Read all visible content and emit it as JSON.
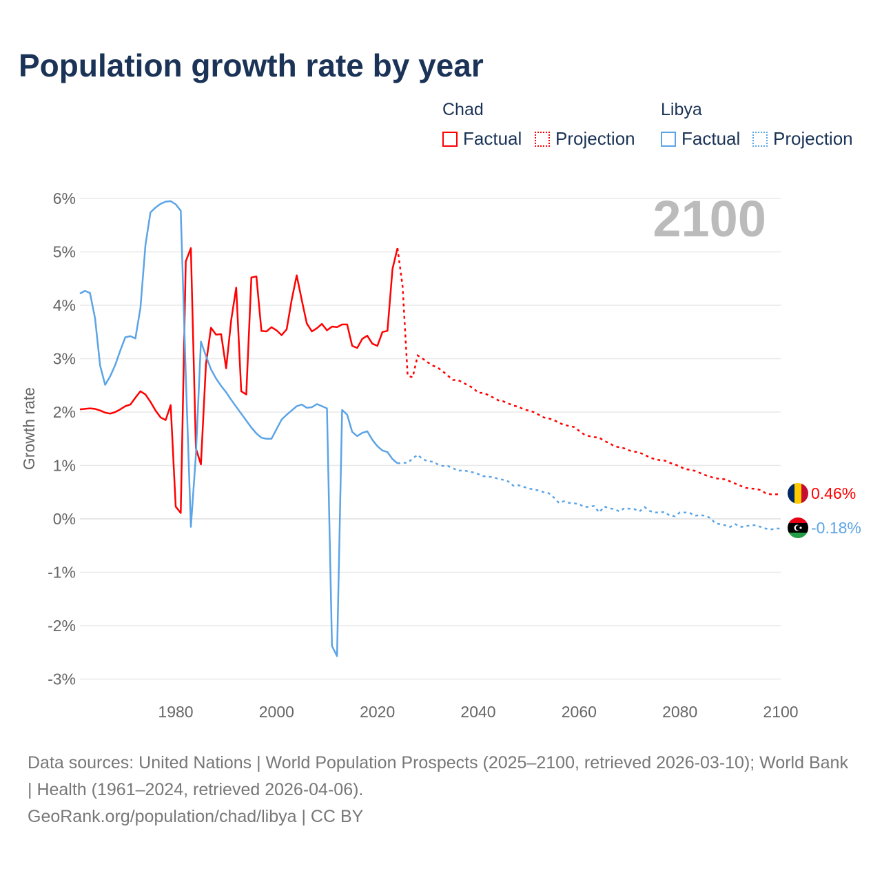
{
  "title": "Population growth rate by year",
  "legend": {
    "groups": [
      {
        "country": "Chad",
        "factual": "Factual",
        "projection": "Projection",
        "color": "#ff0000"
      },
      {
        "country": "Libya",
        "factual": "Factual",
        "projection": "Projection",
        "color": "#5ba4e6"
      }
    ]
  },
  "footer": {
    "sources": "Data sources: United Nations | World Population Prospects (2025–2100, retrieved 2026-03-10); World Bank | Health (1961–2024, retrieved 2026-04-06).",
    "credit": "GeoRank.org/population/chad/libya | CC BY"
  },
  "chart_data": {
    "type": "line",
    "title": "Population growth rate by year",
    "ylabel": "Growth rate",
    "xlabel": "",
    "year_label": "2100",
    "xlim": [
      1961,
      2100
    ],
    "ylim": [
      -3.4,
      6.2
    ],
    "xticks": [
      1980,
      2000,
      2020,
      2040,
      2060,
      2080,
      2100
    ],
    "yticks": [
      -3,
      -2,
      -1,
      0,
      1,
      2,
      3,
      4,
      5,
      6
    ],
    "ytick_labels": [
      "-3%",
      "-2%",
      "-1%",
      "0%",
      "1%",
      "2%",
      "3%",
      "4%",
      "5%",
      "6%"
    ],
    "grid": true,
    "series": [
      {
        "name": "Chad",
        "color": "#ff0000",
        "end_label": "0.46%",
        "flag": "chad-flag",
        "factual": {
          "start": 1961,
          "values": [
            2.05,
            2.06,
            2.07,
            2.06,
            2.03,
            1.99,
            1.97,
            2.0,
            2.05,
            2.11,
            2.14,
            2.27,
            2.39,
            2.33,
            2.19,
            2.03,
            1.9,
            1.85,
            2.13,
            0.23,
            0.11,
            4.82,
            5.07,
            1.32,
            1.02,
            2.9,
            3.58,
            3.45,
            3.46,
            2.82,
            3.72,
            4.33,
            2.39,
            2.33,
            4.52,
            4.54,
            3.52,
            3.51,
            3.59,
            3.53,
            3.44,
            3.55,
            4.1,
            4.56,
            4.1,
            3.66,
            3.51,
            3.57,
            3.65,
            3.53,
            3.6,
            3.59,
            3.64,
            3.64,
            3.24,
            3.2,
            3.37,
            3.43,
            3.28,
            3.24,
            3.5,
            3.52,
            4.68,
            5.07
          ]
        },
        "projection": {
          "start": 2024,
          "values": [
            5.07,
            4.35,
            2.68,
            2.65,
            3.06,
            3.0,
            2.93,
            2.87,
            2.83,
            2.76,
            2.68,
            2.6,
            2.6,
            2.55,
            2.5,
            2.45,
            2.36,
            2.36,
            2.32,
            2.27,
            2.22,
            2.2,
            2.16,
            2.12,
            2.1,
            2.05,
            2.03,
            2.0,
            1.95,
            1.9,
            1.88,
            1.85,
            1.8,
            1.76,
            1.74,
            1.72,
            1.65,
            1.58,
            1.55,
            1.53,
            1.52,
            1.46,
            1.42,
            1.36,
            1.34,
            1.32,
            1.28,
            1.26,
            1.24,
            1.2,
            1.15,
            1.12,
            1.1,
            1.09,
            1.05,
            1.02,
            0.98,
            0.93,
            0.92,
            0.9,
            0.86,
            0.82,
            0.79,
            0.76,
            0.75,
            0.74,
            0.7,
            0.66,
            0.62,
            0.58,
            0.57,
            0.56,
            0.54,
            0.48,
            0.46,
            0.46,
            0.46
          ]
        }
      },
      {
        "name": "Libya",
        "color": "#5ba4e6",
        "end_label": "-0.18%",
        "flag": "libya-flag",
        "factual": {
          "start": 1961,
          "values": [
            4.22,
            4.27,
            4.23,
            3.76,
            2.87,
            2.51,
            2.67,
            2.88,
            3.15,
            3.4,
            3.42,
            3.38,
            3.95,
            5.13,
            5.74,
            5.83,
            5.9,
            5.94,
            5.95,
            5.89,
            5.77,
            2.7,
            -0.15,
            1.2,
            3.32,
            3.05,
            2.8,
            2.63,
            2.49,
            2.37,
            2.23,
            2.1,
            1.97,
            1.84,
            1.71,
            1.6,
            1.52,
            1.5,
            1.5,
            1.68,
            1.86,
            1.95,
            2.03,
            2.11,
            2.14,
            2.08,
            2.09,
            2.15,
            2.11,
            2.07,
            -2.38,
            -2.57,
            2.04,
            1.95,
            1.63,
            1.55,
            1.61,
            1.64,
            1.48,
            1.36,
            1.28,
            1.25,
            1.12,
            1.04
          ]
        },
        "projection": {
          "start": 2024,
          "values": [
            1.04,
            1.05,
            1.05,
            1.13,
            1.2,
            1.12,
            1.08,
            1.07,
            1.02,
            0.99,
            0.99,
            0.95,
            0.9,
            0.91,
            0.89,
            0.87,
            0.84,
            0.8,
            0.79,
            0.78,
            0.75,
            0.73,
            0.7,
            0.62,
            0.63,
            0.6,
            0.57,
            0.55,
            0.53,
            0.5,
            0.48,
            0.4,
            0.3,
            0.33,
            0.3,
            0.29,
            0.28,
            0.22,
            0.23,
            0.24,
            0.12,
            0.23,
            0.2,
            0.18,
            0.14,
            0.2,
            0.19,
            0.18,
            0.14,
            0.22,
            0.15,
            0.12,
            0.12,
            0.13,
            0.06,
            0.05,
            0.12,
            0.12,
            0.11,
            0.06,
            0.07,
            0.06,
            0.02,
            -0.08,
            -0.1,
            -0.12,
            -0.15,
            -0.1,
            -0.15,
            -0.14,
            -0.12,
            -0.12,
            -0.15,
            -0.18,
            -0.2,
            -0.18,
            -0.18
          ]
        }
      }
    ]
  }
}
